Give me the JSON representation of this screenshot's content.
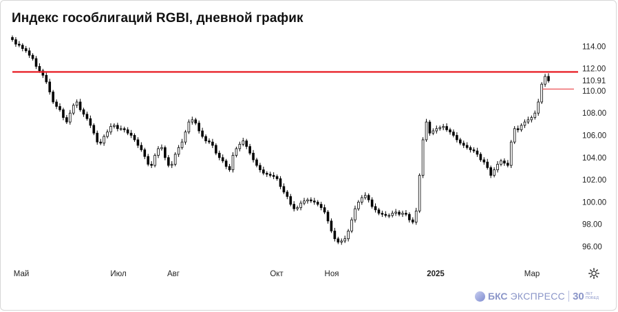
{
  "title": "Индекс гособлигаций RGBI, дневной график",
  "brand": {
    "name": "БКС",
    "product": "ЭКСПРЕСС",
    "anniversary_number": "30",
    "anniversary_text": "ЛЕТ ПОБЕД"
  },
  "icons": {
    "settings": "gear-icon",
    "logo": "bks-logo-icon"
  },
  "colors": {
    "resistance_line": "#e8232a",
    "current_marker": "#e8232a",
    "candle": "#000000"
  },
  "chart_data": {
    "type": "candlestick",
    "title": "Индекс гособлигаций RGBI, дневной график",
    "y_ticks": [
      "114.00",
      "112.00",
      "110.91",
      "110.00",
      "108.00",
      "106.00",
      "104.00",
      "102.00",
      "100.00",
      "98.00",
      "96.00"
    ],
    "x_ticks": [
      {
        "label": "Май",
        "day": 0,
        "bold": false
      },
      {
        "label": "Июл",
        "day": 61,
        "bold": false
      },
      {
        "label": "Авг",
        "day": 92,
        "bold": false
      },
      {
        "label": "Окт",
        "day": 153,
        "bold": false
      },
      {
        "label": "Ноя",
        "day": 184,
        "bold": false
      },
      {
        "label": "2025",
        "day": 245,
        "bold": true
      },
      {
        "label": "Мар",
        "day": 304,
        "bold": false
      }
    ],
    "ylim": [
      95.0,
      115.0
    ],
    "resistance_level": 111.7,
    "current_value": 110.91,
    "series": [
      {
        "name": "RGBI",
        "points": [
          [
            0,
            114.6
          ],
          [
            2,
            114.2
          ],
          [
            4,
            114.1
          ],
          [
            6,
            113.8
          ],
          [
            8,
            113.6
          ],
          [
            10,
            113.2
          ],
          [
            12,
            112.9
          ],
          [
            14,
            112.2
          ],
          [
            16,
            111.8
          ],
          [
            18,
            111.4
          ],
          [
            20,
            110.8
          ],
          [
            22,
            109.9
          ],
          [
            24,
            109.0
          ],
          [
            26,
            108.6
          ],
          [
            28,
            108.3
          ],
          [
            30,
            107.6
          ],
          [
            32,
            107.2
          ],
          [
            34,
            108.0
          ],
          [
            36,
            108.7
          ],
          [
            38,
            109.0
          ],
          [
            40,
            108.3
          ],
          [
            42,
            107.9
          ],
          [
            44,
            107.5
          ],
          [
            46,
            106.9
          ],
          [
            48,
            106.2
          ],
          [
            50,
            105.4
          ],
          [
            52,
            105.3
          ],
          [
            54,
            105.9
          ],
          [
            56,
            106.3
          ],
          [
            58,
            106.8
          ],
          [
            60,
            106.9
          ],
          [
            62,
            106.6
          ],
          [
            64,
            106.6
          ],
          [
            66,
            106.5
          ],
          [
            68,
            106.2
          ],
          [
            70,
            106.0
          ],
          [
            72,
            105.6
          ],
          [
            74,
            105.1
          ],
          [
            76,
            104.7
          ],
          [
            78,
            104.1
          ],
          [
            80,
            103.4
          ],
          [
            82,
            103.3
          ],
          [
            84,
            104.2
          ],
          [
            86,
            104.8
          ],
          [
            88,
            104.9
          ],
          [
            90,
            104.0
          ],
          [
            92,
            103.3
          ],
          [
            94,
            103.4
          ],
          [
            96,
            104.3
          ],
          [
            98,
            104.9
          ],
          [
            100,
            105.4
          ],
          [
            102,
            106.3
          ],
          [
            104,
            107.2
          ],
          [
            106,
            107.4
          ],
          [
            108,
            107.1
          ],
          [
            110,
            106.4
          ],
          [
            112,
            105.9
          ],
          [
            114,
            105.5
          ],
          [
            116,
            105.4
          ],
          [
            118,
            105.1
          ],
          [
            120,
            104.4
          ],
          [
            122,
            104.0
          ],
          [
            124,
            103.7
          ],
          [
            126,
            103.2
          ],
          [
            128,
            102.9
          ],
          [
            130,
            104.2
          ],
          [
            132,
            104.8
          ],
          [
            134,
            105.2
          ],
          [
            136,
            105.5
          ],
          [
            138,
            105.0
          ],
          [
            140,
            104.4
          ],
          [
            142,
            103.8
          ],
          [
            144,
            103.3
          ],
          [
            146,
            102.9
          ],
          [
            148,
            102.6
          ],
          [
            150,
            102.5
          ],
          [
            152,
            102.4
          ],
          [
            154,
            102.3
          ],
          [
            156,
            102.1
          ],
          [
            158,
            101.4
          ],
          [
            160,
            100.9
          ],
          [
            162,
            100.5
          ],
          [
            164,
            99.8
          ],
          [
            166,
            99.4
          ],
          [
            168,
            99.5
          ],
          [
            170,
            99.9
          ],
          [
            172,
            100.1
          ],
          [
            174,
            100.2
          ],
          [
            176,
            100.1
          ],
          [
            178,
            100.0
          ],
          [
            180,
            99.8
          ],
          [
            182,
            99.5
          ],
          [
            184,
            99.1
          ],
          [
            186,
            98.3
          ],
          [
            188,
            97.4
          ],
          [
            190,
            96.7
          ],
          [
            192,
            96.4
          ],
          [
            194,
            96.5
          ],
          [
            196,
            96.7
          ],
          [
            198,
            97.4
          ],
          [
            200,
            98.4
          ],
          [
            202,
            99.4
          ],
          [
            204,
            100.0
          ],
          [
            206,
            100.4
          ],
          [
            208,
            100.6
          ],
          [
            210,
            100.2
          ],
          [
            212,
            99.6
          ],
          [
            214,
            99.3
          ],
          [
            216,
            99.0
          ],
          [
            218,
            98.9
          ],
          [
            220,
            98.8
          ],
          [
            222,
            98.8
          ],
          [
            224,
            99.0
          ],
          [
            226,
            99.1
          ],
          [
            228,
            98.9
          ],
          [
            230,
            99.0
          ],
          [
            232,
            98.9
          ],
          [
            234,
            98.4
          ],
          [
            236,
            98.2
          ],
          [
            238,
            99.2
          ],
          [
            240,
            102.4
          ],
          [
            242,
            105.6
          ],
          [
            244,
            107.2
          ],
          [
            246,
            106.2
          ],
          [
            248,
            106.4
          ],
          [
            250,
            106.6
          ],
          [
            252,
            106.7
          ],
          [
            254,
            106.8
          ],
          [
            256,
            106.5
          ],
          [
            258,
            106.3
          ],
          [
            260,
            106.0
          ],
          [
            262,
            105.6
          ],
          [
            264,
            105.3
          ],
          [
            266,
            105.1
          ],
          [
            268,
            104.9
          ],
          [
            270,
            104.7
          ],
          [
            272,
            104.6
          ],
          [
            274,
            104.3
          ],
          [
            276,
            103.8
          ],
          [
            278,
            103.6
          ],
          [
            280,
            103.1
          ],
          [
            282,
            102.4
          ],
          [
            284,
            102.9
          ],
          [
            286,
            103.4
          ],
          [
            288,
            103.7
          ],
          [
            290,
            103.5
          ],
          [
            292,
            103.3
          ],
          [
            294,
            105.4
          ],
          [
            296,
            106.6
          ],
          [
            298,
            106.5
          ],
          [
            300,
            106.9
          ],
          [
            302,
            107.2
          ],
          [
            304,
            107.4
          ],
          [
            306,
            107.6
          ],
          [
            308,
            108.0
          ],
          [
            310,
            109.0
          ],
          [
            312,
            110.6
          ],
          [
            314,
            111.3
          ],
          [
            316,
            110.9
          ]
        ]
      }
    ]
  }
}
